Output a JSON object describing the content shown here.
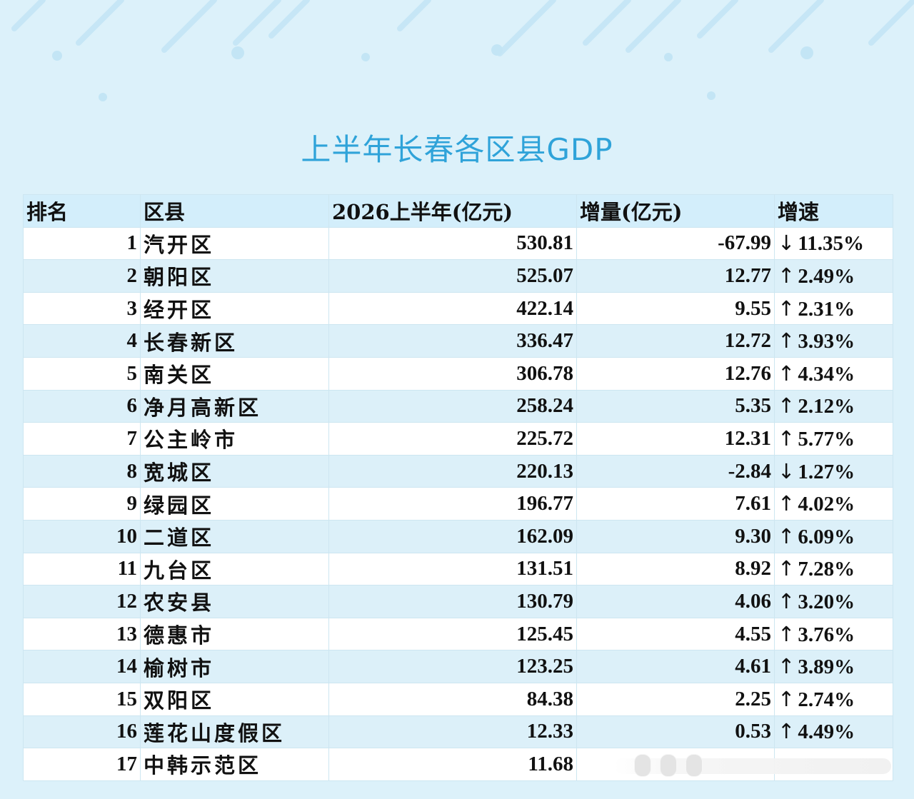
{
  "title": "上半年长春各区县GDP",
  "headers": {
    "rank": "排名",
    "district": "区县",
    "gdp": "2026上半年(亿元)",
    "increase": "增量(亿元)",
    "growth": "增速"
  },
  "rows": [
    {
      "rank": "1",
      "name": "汽开区",
      "gdp": "530.81",
      "increase": "-67.99",
      "arrow": "↓",
      "growth": "11.35%"
    },
    {
      "rank": "2",
      "name": "朝阳区",
      "gdp": "525.07",
      "increase": "12.77",
      "arrow": "↑",
      "growth": "2.49%"
    },
    {
      "rank": "3",
      "name": "经开区",
      "gdp": "422.14",
      "increase": "9.55",
      "arrow": "↑",
      "growth": "2.31%"
    },
    {
      "rank": "4",
      "name": "长春新区",
      "gdp": "336.47",
      "increase": "12.72",
      "arrow": "↑",
      "growth": "3.93%"
    },
    {
      "rank": "5",
      "name": "南关区",
      "gdp": "306.78",
      "increase": "12.76",
      "arrow": "↑",
      "growth": "4.34%"
    },
    {
      "rank": "6",
      "name": "净月高新区",
      "gdp": "258.24",
      "increase": "5.35",
      "arrow": "↑",
      "growth": "2.12%"
    },
    {
      "rank": "7",
      "name": "公主岭市",
      "gdp": "225.72",
      "increase": "12.31",
      "arrow": "↑",
      "growth": "5.77%"
    },
    {
      "rank": "8",
      "name": "宽城区",
      "gdp": "220.13",
      "increase": "-2.84",
      "arrow": "↓",
      "growth": "1.27%"
    },
    {
      "rank": "9",
      "name": "绿园区",
      "gdp": "196.77",
      "increase": "7.61",
      "arrow": "↑",
      "growth": "4.02%"
    },
    {
      "rank": "10",
      "name": "二道区",
      "gdp": "162.09",
      "increase": "9.30",
      "arrow": "↑",
      "growth": "6.09%"
    },
    {
      "rank": "11",
      "name": "九台区",
      "gdp": "131.51",
      "increase": "8.92",
      "arrow": "↑",
      "growth": "7.28%"
    },
    {
      "rank": "12",
      "name": "农安县",
      "gdp": "130.79",
      "increase": "4.06",
      "arrow": "↑",
      "growth": "3.20%"
    },
    {
      "rank": "13",
      "name": "德惠市",
      "gdp": "125.45",
      "increase": "4.55",
      "arrow": "↑",
      "growth": "3.76%"
    },
    {
      "rank": "14",
      "name": "榆树市",
      "gdp": "123.25",
      "increase": "4.61",
      "arrow": "↑",
      "growth": "3.89%"
    },
    {
      "rank": "15",
      "name": "双阳区",
      "gdp": "84.38",
      "increase": "2.25",
      "arrow": "↑",
      "growth": "2.74%"
    },
    {
      "rank": "16",
      "name": "莲花山度假区",
      "gdp": "12.33",
      "increase": "0.53",
      "arrow": "↑",
      "growth": "4.49%"
    },
    {
      "rank": "17",
      "name": "中韩示范区",
      "gdp": "11.68",
      "increase": "",
      "arrow": "",
      "growth": ""
    }
  ],
  "colors": {
    "title": "#2fa3d9",
    "background": "#dcf1fa",
    "row_alt": "#dcf0f9",
    "header": "#d3eefb"
  }
}
